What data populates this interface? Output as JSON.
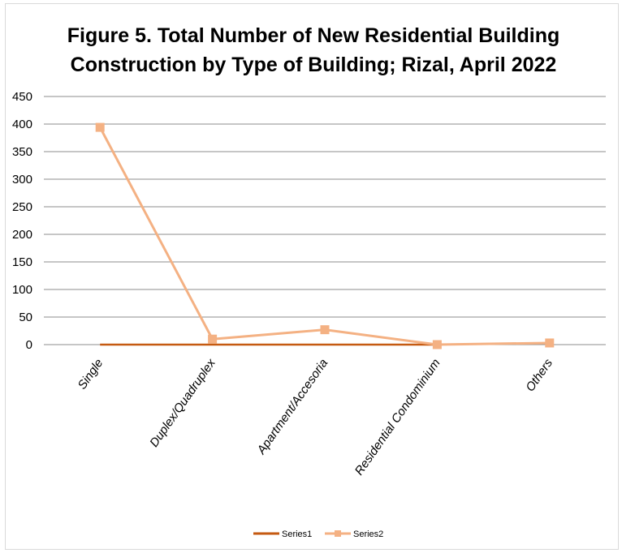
{
  "chart_data": {
    "type": "line",
    "title_lines": [
      "Figure 5. Total Number of New Residential Building",
      "Construction by Type of Building; Rizal, April 2022"
    ],
    "categories": [
      "Single",
      "Duplex/Quadruplex",
      "Apartment/Accesoria",
      "Residential Condominium",
      "Others"
    ],
    "series": [
      {
        "name": "Series1",
        "values": [
          0,
          0,
          0,
          0,
          null
        ],
        "color": "#c55a11",
        "marker": "none"
      },
      {
        "name": "Series2",
        "values": [
          394,
          10,
          27,
          0,
          3
        ],
        "color": "#f4b183",
        "marker": "square"
      }
    ],
    "ylim": [
      0,
      450
    ],
    "yticks": [
      0,
      50,
      100,
      150,
      200,
      250,
      300,
      350,
      400,
      450
    ],
    "grid": true,
    "gridline_color": "#8c8c8c",
    "legend_position": "bottom"
  }
}
